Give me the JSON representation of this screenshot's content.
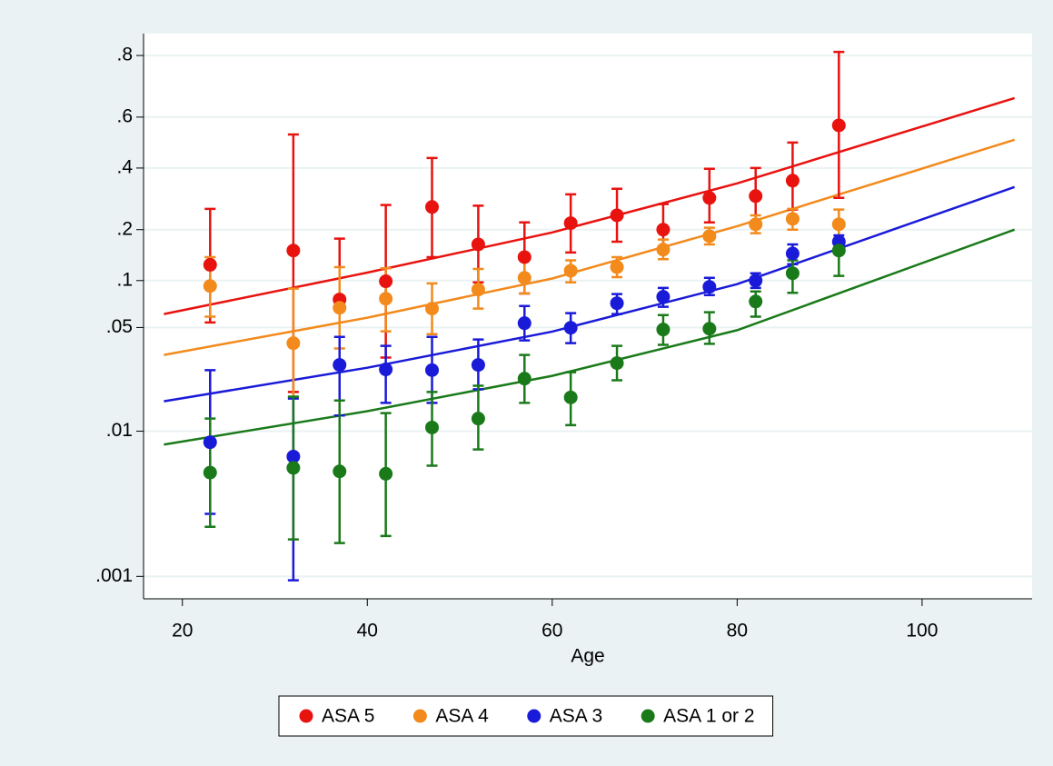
{
  "chart_data": {
    "type": "scatter",
    "x_label": "Age",
    "yscale": "logit",
    "xlim": [
      15.8,
      111.9
    ],
    "xticks": [
      20,
      40,
      60,
      80,
      100
    ],
    "ylim": [
      0.0007,
      0.85
    ],
    "yticks": [
      {
        "value": 0.001,
        "label": ".001"
      },
      {
        "value": 0.01,
        "label": ".01"
      },
      {
        "value": 0.05,
        "label": ".05"
      },
      {
        "value": 0.1,
        "label": ".1"
      },
      {
        "value": 0.2,
        "label": ".2"
      },
      {
        "value": 0.4,
        "label": ".4"
      },
      {
        "value": 0.6,
        "label": ".6"
      },
      {
        "value": 0.8,
        "label": ".8"
      }
    ],
    "grid": true,
    "series": [
      {
        "name": "ASA 5",
        "color": "#e8120f",
        "x": [
          23,
          32,
          37,
          42,
          47,
          52,
          57,
          62,
          67,
          72,
          77,
          82,
          86,
          91
        ],
        "values": [
          0.125,
          0.152,
          0.076,
          0.099,
          0.264,
          0.165,
          0.139,
          0.217,
          0.239,
          0.2,
          0.293,
          0.299,
          0.353,
          0.568
        ],
        "lower": [
          0.054,
          0.0185,
          0.0286,
          0.0316,
          0.139,
          0.0975,
          0.083,
          0.148,
          0.171,
          0.154,
          0.219,
          0.221,
          0.256,
          0.293
        ],
        "upper": [
          0.258,
          0.532,
          0.178,
          0.27,
          0.439,
          0.268,
          0.219,
          0.305,
          0.324,
          0.273,
          0.397,
          0.4,
          0.5,
          0.809
        ],
        "fit": {
          "x": [
            18,
            40,
            60,
            80,
            110
          ],
          "values": [
            0.0612,
            0.112,
            0.193,
            0.343,
            0.67
          ]
        }
      },
      {
        "name": "ASA 4",
        "color": "#f28a1c",
        "x": [
          23,
          32,
          37,
          42,
          47,
          52,
          57,
          62,
          67,
          72,
          77,
          82,
          86,
          91
        ],
        "values": [
          0.0925,
          0.0394,
          0.0672,
          0.0769,
          0.0664,
          0.0878,
          0.104,
          0.115,
          0.121,
          0.154,
          0.184,
          0.214,
          0.229,
          0.214
        ],
        "lower": [
          0.0589,
          0.017,
          0.0363,
          0.0472,
          0.0452,
          0.0664,
          0.083,
          0.0975,
          0.105,
          0.135,
          0.165,
          0.191,
          0.2,
          0.174
        ],
        "upper": [
          0.139,
          0.089,
          0.121,
          0.119,
          0.096,
          0.118,
          0.133,
          0.133,
          0.139,
          0.176,
          0.205,
          0.239,
          0.258,
          0.256
        ],
        "fit": {
          "x": [
            18,
            40,
            60,
            80,
            110
          ],
          "values": [
            0.0329,
            0.058,
            0.103,
            0.209,
            0.511
          ]
        }
      },
      {
        "name": "ASA 3",
        "color": "#1a1ad9",
        "x": [
          23,
          32,
          37,
          42,
          47,
          52,
          57,
          62,
          67,
          72,
          77,
          82,
          86,
          91
        ],
        "values": [
          0.0084,
          0.0067,
          0.0282,
          0.0263,
          0.026,
          0.0282,
          0.0534,
          0.0498,
          0.0719,
          0.079,
          0.0913,
          0.1,
          0.146,
          0.171
        ],
        "lower": [
          0.0027,
          0.00094,
          0.0128,
          0.0156,
          0.0156,
          0.0193,
          0.0411,
          0.0394,
          0.0612,
          0.0682,
          0.0811,
          0.09,
          0.126,
          0.158
        ],
        "upper": [
          0.026,
          0.0167,
          0.0434,
          0.0378,
          0.0434,
          0.0417,
          0.069,
          0.062,
          0.0822,
          0.09,
          0.104,
          0.111,
          0.165,
          0.186
        ],
        "fit": {
          "x": [
            18,
            40,
            60,
            80,
            110
          ],
          "values": [
            0.016,
            0.027,
            0.047,
            0.095,
            0.33
          ]
        }
      },
      {
        "name": "ASA 1 or 2",
        "color": "#1a7a1a",
        "x": [
          23,
          32,
          37,
          42,
          47,
          52,
          57,
          62,
          67,
          72,
          77,
          82,
          86,
          91
        ],
        "values": [
          0.0052,
          0.0056,
          0.0053,
          0.0051,
          0.0106,
          0.0122,
          0.0228,
          0.017,
          0.029,
          0.0485,
          0.0491,
          0.0738,
          0.111,
          0.152
        ],
        "lower": [
          0.0022,
          0.0018,
          0.0017,
          0.0019,
          0.0058,
          0.0075,
          0.0156,
          0.011,
          0.0222,
          0.0384,
          0.039,
          0.0589,
          0.0838,
          0.107
        ],
        "upper": [
          0.0122,
          0.0172,
          0.0162,
          0.0133,
          0.0185,
          0.0204,
          0.0329,
          0.0252,
          0.0378,
          0.0603,
          0.0629,
          0.0855,
          0.133,
          0.178
        ],
        "fit": {
          "x": [
            18,
            40,
            60,
            80,
            110
          ],
          "values": [
            0.0081,
            0.0137,
            0.0238,
            0.048,
            0.2
          ]
        }
      }
    ]
  }
}
